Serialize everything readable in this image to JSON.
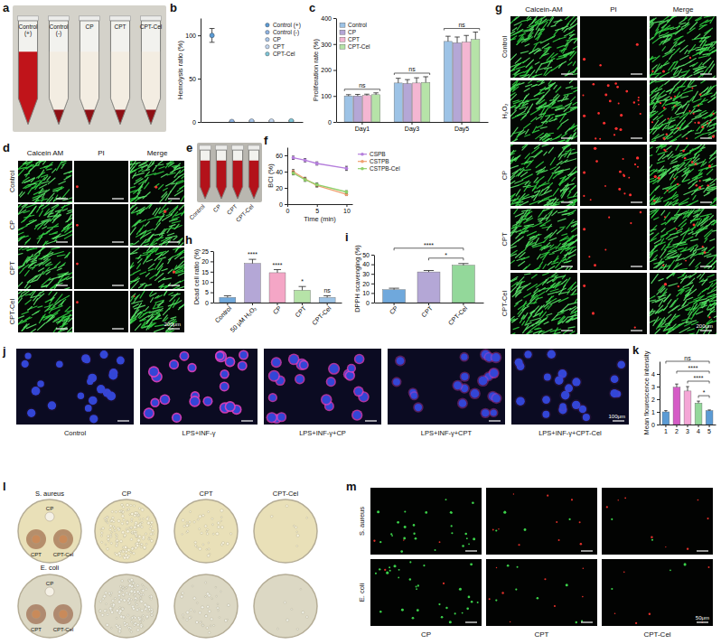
{
  "images": [
    {
      "panel": "a",
      "tube_labels": [
        "Control (+)",
        "Control (-)",
        "CP",
        "CPT",
        "CPT-Cel"
      ]
    },
    {
      "panel": "d",
      "columns": [
        "Calcein AM",
        "PI",
        "Merge"
      ],
      "rows": [
        "Control",
        "CP",
        "CPT",
        "CPT-Cel"
      ],
      "scale_bar": "200μm"
    },
    {
      "panel": "e",
      "tube_labels": [
        "Control",
        "CP",
        "CPT",
        "CPT-Cel"
      ]
    },
    {
      "panel": "g",
      "columns": [
        "Calcein-AM",
        "PI",
        "Merge"
      ],
      "rows": [
        "Control",
        "H₂O₂",
        "CP",
        "CPT",
        "CPT-Cel"
      ],
      "scale_bar": "200μm"
    },
    {
      "panel": "j",
      "columns": [
        "Control",
        "LPS+INF-γ",
        "LPS+INF-γ+CP",
        "LPS+INF-γ+CPT",
        "LPS+INF-γ+CPT-Cel"
      ],
      "scale_bar": "100μm"
    },
    {
      "panel": "l",
      "rows": [
        "S. aureus",
        "E. coli"
      ],
      "disc_labels": [
        "CP",
        "CPT",
        "CPT-Cel"
      ],
      "columns": [
        "CP",
        "CPT",
        "CPT-Cel"
      ]
    },
    {
      "panel": "m",
      "rows": [
        "S. aureus",
        "E. coli"
      ],
      "columns": [
        "CP",
        "CPT",
        "CPT-Cel"
      ],
      "scale_bar": "50μm"
    }
  ],
  "chart_data": [
    {
      "panel": "b",
      "type": "scatter",
      "categories": [
        "Control (+)",
        "Control (-)",
        "CP",
        "CPT",
        "CPT-Cel"
      ],
      "values": [
        100,
        0.5,
        1,
        1,
        1.2
      ],
      "errors": [
        8,
        0.3,
        0.4,
        0.4,
        0.5
      ],
      "colors": [
        "#5b9bd5",
        "#8fb4e3",
        "#a9c6ea",
        "#c3d6ef",
        "#7fc6d8"
      ],
      "y_label": "Hemolysis ratio (%)",
      "ylim": [
        0,
        120
      ],
      "yticks": [
        0,
        50,
        100
      ],
      "legend": "upper right",
      "tick_labels": "y",
      "marker": "circle"
    },
    {
      "panel": "c",
      "type": "bar",
      "categories": [
        "Day1",
        "Day3",
        "Day5"
      ],
      "series": [
        {
          "name": "Control",
          "color": "#9dc3e6",
          "values": [
            100,
            150,
            310
          ],
          "errors": [
            5,
            18,
            20
          ]
        },
        {
          "name": "CP",
          "color": "#b4a7d6",
          "values": [
            100,
            148,
            305
          ],
          "errors": [
            6,
            15,
            22
          ]
        },
        {
          "name": "CPT",
          "color": "#f4b6d2",
          "values": [
            102,
            150,
            308
          ],
          "errors": [
            5,
            20,
            25
          ]
        },
        {
          "name": "CPT-Cel",
          "color": "#b6e3a8",
          "values": [
            105,
            152,
            318
          ],
          "errors": [
            7,
            22,
            28
          ]
        }
      ],
      "y_label": "Proliferation rate (%)",
      "ylim": [
        0,
        400
      ],
      "yticks": [
        0,
        100,
        200,
        300,
        400
      ],
      "legend": "upper left",
      "annotations": [
        {
          "category": "Day1",
          "label": "ns"
        },
        {
          "category": "Day3",
          "label": "ns"
        },
        {
          "category": "Day5",
          "label": "ns"
        }
      ]
    },
    {
      "panel": "f",
      "type": "line",
      "x": [
        1,
        3,
        5,
        10
      ],
      "series": [
        {
          "name": "CSPB",
          "color": "#b57edc",
          "values": [
            57,
            54,
            50,
            44
          ],
          "errors": [
            2,
            2,
            2,
            2.5
          ]
        },
        {
          "name": "CSTPB",
          "color": "#f0a070",
          "values": [
            40,
            31,
            23,
            12
          ],
          "errors": [
            2.5,
            2,
            2,
            1.5
          ]
        },
        {
          "name": "CSTPB-Cel",
          "color": "#8fcf6a",
          "values": [
            38,
            30,
            24,
            15
          ],
          "errors": [
            2,
            2,
            2,
            1.5
          ]
        }
      ],
      "x_label": "Time (min)",
      "y_label": "BCI (%)",
      "xlim": [
        0,
        11
      ],
      "xticks": [
        0,
        5,
        10
      ],
      "ylim": [
        0,
        70
      ],
      "yticks": [
        0,
        20,
        40,
        60
      ],
      "legend": "right",
      "marker": "circle"
    },
    {
      "panel": "h",
      "type": "bar",
      "categories": [
        "Control",
        "50 μM H₂O₂",
        "CP",
        "CPT",
        "CPT-Cel"
      ],
      "values": [
        2.5,
        19,
        14.5,
        6,
        2.5
      ],
      "errors": [
        0.8,
        2,
        1.5,
        1.8,
        0.8
      ],
      "colors": [
        "#6fa8dc",
        "#b4a7d6",
        "#f4a6c6",
        "#b6e3a8",
        "#9dc3e6"
      ],
      "y_label": "Dead cell ratio (%)",
      "ylim": [
        0,
        25
      ],
      "yticks": [
        0,
        5,
        10,
        15,
        20,
        25
      ],
      "annotations": [
        {
          "category": "50 μM H₂O₂",
          "label": "****"
        },
        {
          "category": "CP",
          "label": "****"
        },
        {
          "category": "CPT",
          "label": "*"
        },
        {
          "category": "CPT-Cel",
          "label": "ns"
        }
      ]
    },
    {
      "panel": "i",
      "type": "bar",
      "categories": [
        "CP",
        "CPT",
        "CPT-Cel"
      ],
      "values": [
        13.5,
        32,
        39
      ],
      "errors": [
        1.5,
        1.5,
        1.8
      ],
      "colors": [
        "#6fa8dc",
        "#b4a7d6",
        "#93d89a"
      ],
      "y_label": "DPPH scavenging (%)",
      "ylim": [
        0,
        50
      ],
      "yticks": [
        0,
        10,
        20,
        30,
        40,
        50
      ],
      "brackets": [
        {
          "from": "CP",
          "to": "CPT-Cel",
          "label": "****"
        },
        {
          "from": "CPT",
          "to": "CPT-Cel",
          "label": "*"
        }
      ]
    },
    {
      "panel": "k",
      "type": "bar",
      "categories": [
        "1",
        "2",
        "3",
        "4",
        "5"
      ],
      "values": [
        1,
        2.95,
        2.65,
        1.7,
        1.1
      ],
      "errors": [
        0.1,
        0.25,
        0.35,
        0.15,
        0.05
      ],
      "colors": [
        "#5b9bd5",
        "#d55bc6",
        "#f4a6d6",
        "#93d89a",
        "#5b9bd5"
      ],
      "y_label": "Mean flourescence intensity",
      "ylim": [
        0,
        5
      ],
      "yticks": [
        0,
        1,
        2,
        3,
        4
      ],
      "brackets": [
        {
          "from": "1",
          "to": "5",
          "label": "ns"
        },
        {
          "from": "2",
          "to": "5",
          "label": "****"
        },
        {
          "from": "3",
          "to": "5",
          "label": "****"
        },
        {
          "from": "4",
          "to": "5",
          "label": "*"
        }
      ]
    }
  ]
}
